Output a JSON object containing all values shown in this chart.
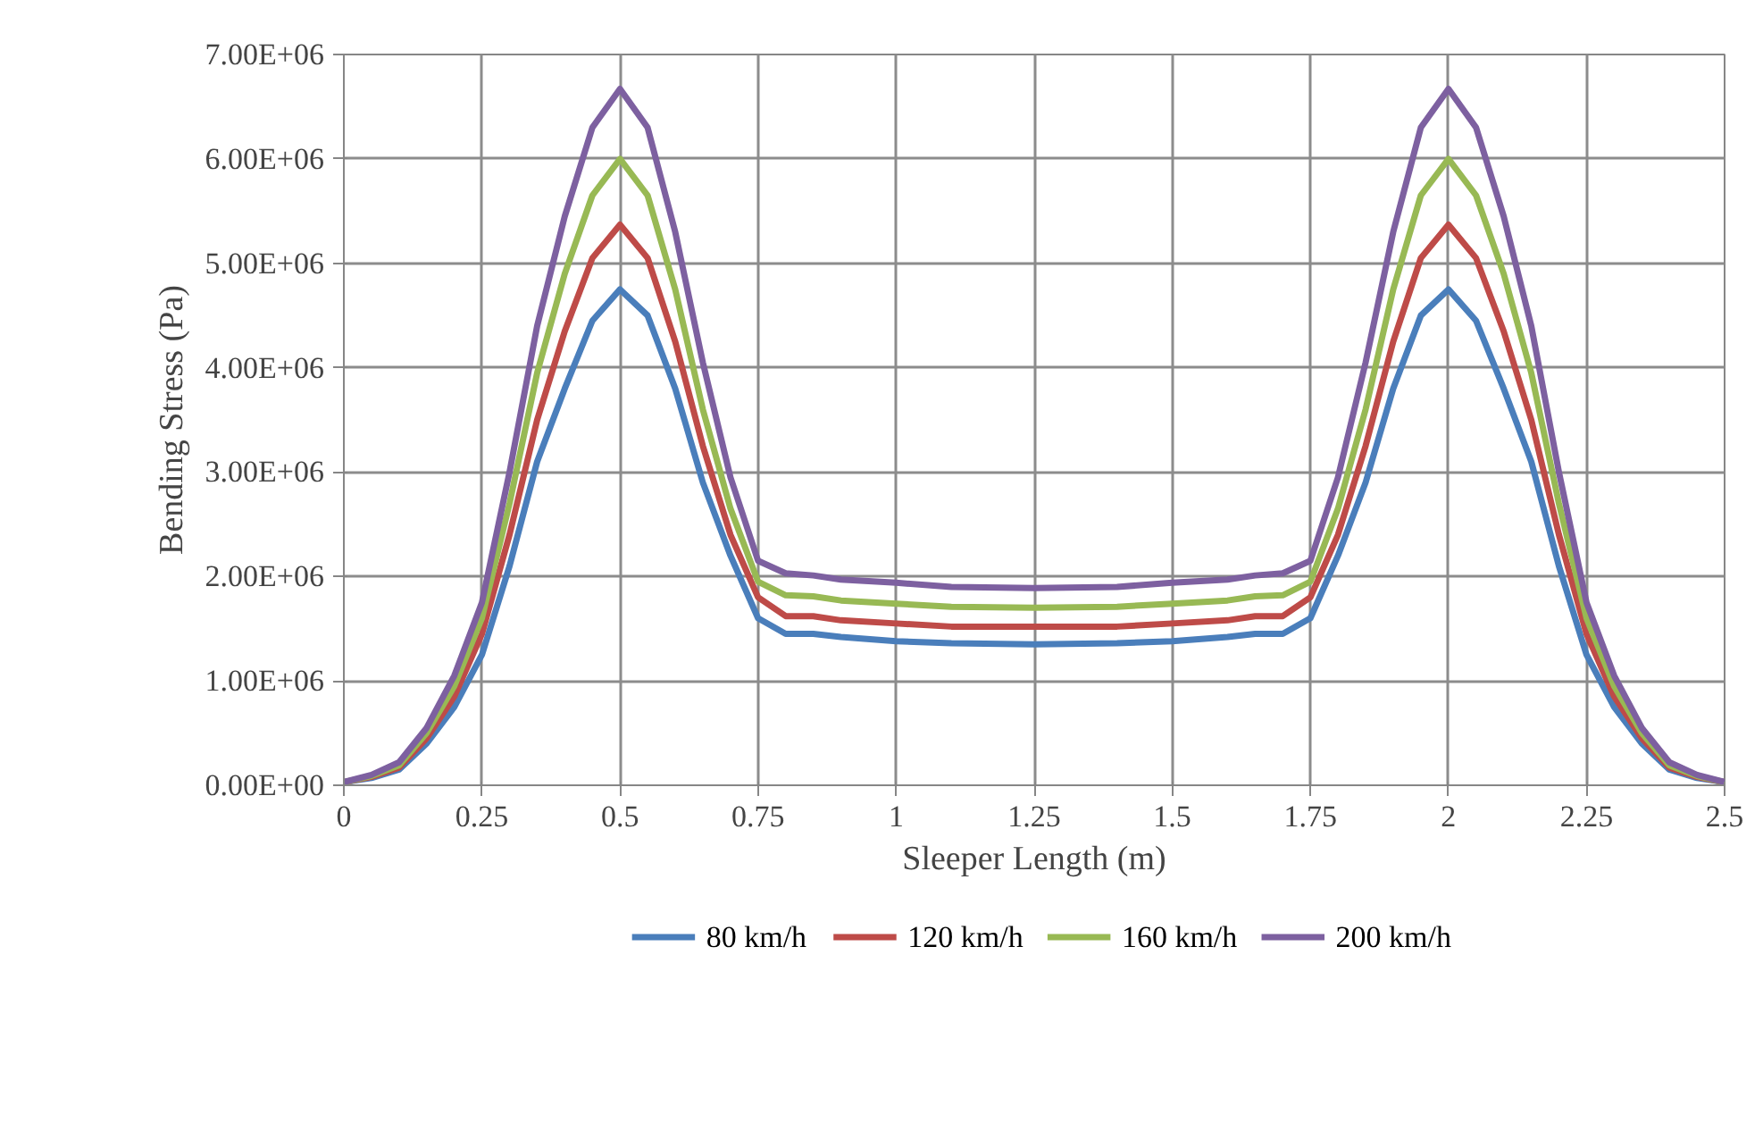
{
  "chart_data": {
    "type": "line",
    "xlabel": "Sleeper Length (m)",
    "ylabel": "Bending Stress (Pa)",
    "x": [
      0,
      0.05,
      0.1,
      0.15,
      0.2,
      0.25,
      0.3,
      0.35,
      0.4,
      0.45,
      0.5,
      0.55,
      0.6,
      0.65,
      0.7,
      0.75,
      0.8,
      0.85,
      0.9,
      1.0,
      1.1,
      1.25,
      1.4,
      1.5,
      1.6,
      1.65,
      1.7,
      1.75,
      1.8,
      1.85,
      1.9,
      1.95,
      2.0,
      2.05,
      2.1,
      2.15,
      2.2,
      2.25,
      2.3,
      2.35,
      2.4,
      2.45,
      2.5
    ],
    "series": [
      {
        "name": "80 km/h",
        "color": "#4a7ebb",
        "values": [
          30000,
          70000,
          150000,
          400000,
          750000,
          1250000,
          2100000,
          3100000,
          3800000,
          4450000,
          4750000,
          4500000,
          3800000,
          2900000,
          2200000,
          1600000,
          1450000,
          1450000,
          1420000,
          1380000,
          1360000,
          1350000,
          1360000,
          1380000,
          1420000,
          1450000,
          1450000,
          1600000,
          2200000,
          2900000,
          3800000,
          4500000,
          4750000,
          4450000,
          3800000,
          3100000,
          2100000,
          1250000,
          750000,
          400000,
          150000,
          70000,
          30000
        ]
      },
      {
        "name": "120 km/h",
        "color": "#be4b48",
        "values": [
          30000,
          80000,
          170000,
          450000,
          850000,
          1450000,
          2400000,
          3500000,
          4350000,
          5050000,
          5370000,
          5050000,
          4250000,
          3250000,
          2400000,
          1800000,
          1620000,
          1620000,
          1580000,
          1550000,
          1520000,
          1520000,
          1520000,
          1550000,
          1580000,
          1620000,
          1620000,
          1800000,
          2400000,
          3250000,
          4250000,
          5050000,
          5370000,
          5050000,
          4350000,
          3500000,
          2400000,
          1450000,
          850000,
          450000,
          170000,
          80000,
          30000
        ]
      },
      {
        "name": "160 km/h",
        "color": "#98b954",
        "values": [
          30000,
          90000,
          190000,
          500000,
          950000,
          1600000,
          2700000,
          3950000,
          4900000,
          5650000,
          6000000,
          5650000,
          4750000,
          3600000,
          2650000,
          1950000,
          1820000,
          1810000,
          1770000,
          1740000,
          1710000,
          1700000,
          1710000,
          1740000,
          1770000,
          1810000,
          1820000,
          1950000,
          2650000,
          3600000,
          4750000,
          5650000,
          6000000,
          5650000,
          4900000,
          3950000,
          2700000,
          1600000,
          950000,
          500000,
          190000,
          90000,
          30000
        ]
      },
      {
        "name": "200 km/h",
        "color": "#7d60a0",
        "values": [
          30000,
          100000,
          220000,
          550000,
          1050000,
          1750000,
          3000000,
          4400000,
          5450000,
          6300000,
          6670000,
          6300000,
          5300000,
          4050000,
          2950000,
          2150000,
          2030000,
          2010000,
          1970000,
          1940000,
          1900000,
          1890000,
          1900000,
          1940000,
          1970000,
          2010000,
          2030000,
          2150000,
          2950000,
          4050000,
          5300000,
          6300000,
          6670000,
          6300000,
          5450000,
          4400000,
          3000000,
          1750000,
          1050000,
          550000,
          220000,
          100000,
          30000
        ]
      }
    ],
    "xlim": [
      0,
      2.5
    ],
    "xticks": [
      0,
      0.25,
      0.5,
      0.75,
      1,
      1.25,
      1.5,
      1.75,
      2,
      2.25,
      2.5
    ],
    "ylim": [
      0,
      7000000
    ],
    "yticks": [
      {
        "value": 0,
        "label": "0.00E+00"
      },
      {
        "value": 1000000,
        "label": "1.00E+06"
      },
      {
        "value": 2000000,
        "label": "2.00E+06"
      },
      {
        "value": 3000000,
        "label": "3.00E+06"
      },
      {
        "value": 4000000,
        "label": "4.00E+06"
      },
      {
        "value": 5000000,
        "label": "5.00E+06"
      },
      {
        "value": 6000000,
        "label": "6.00E+06"
      },
      {
        "value": 7000000,
        "label": "7.00E+06"
      }
    ],
    "grid": true,
    "legend": "bottom",
    "line_style": "solid"
  }
}
